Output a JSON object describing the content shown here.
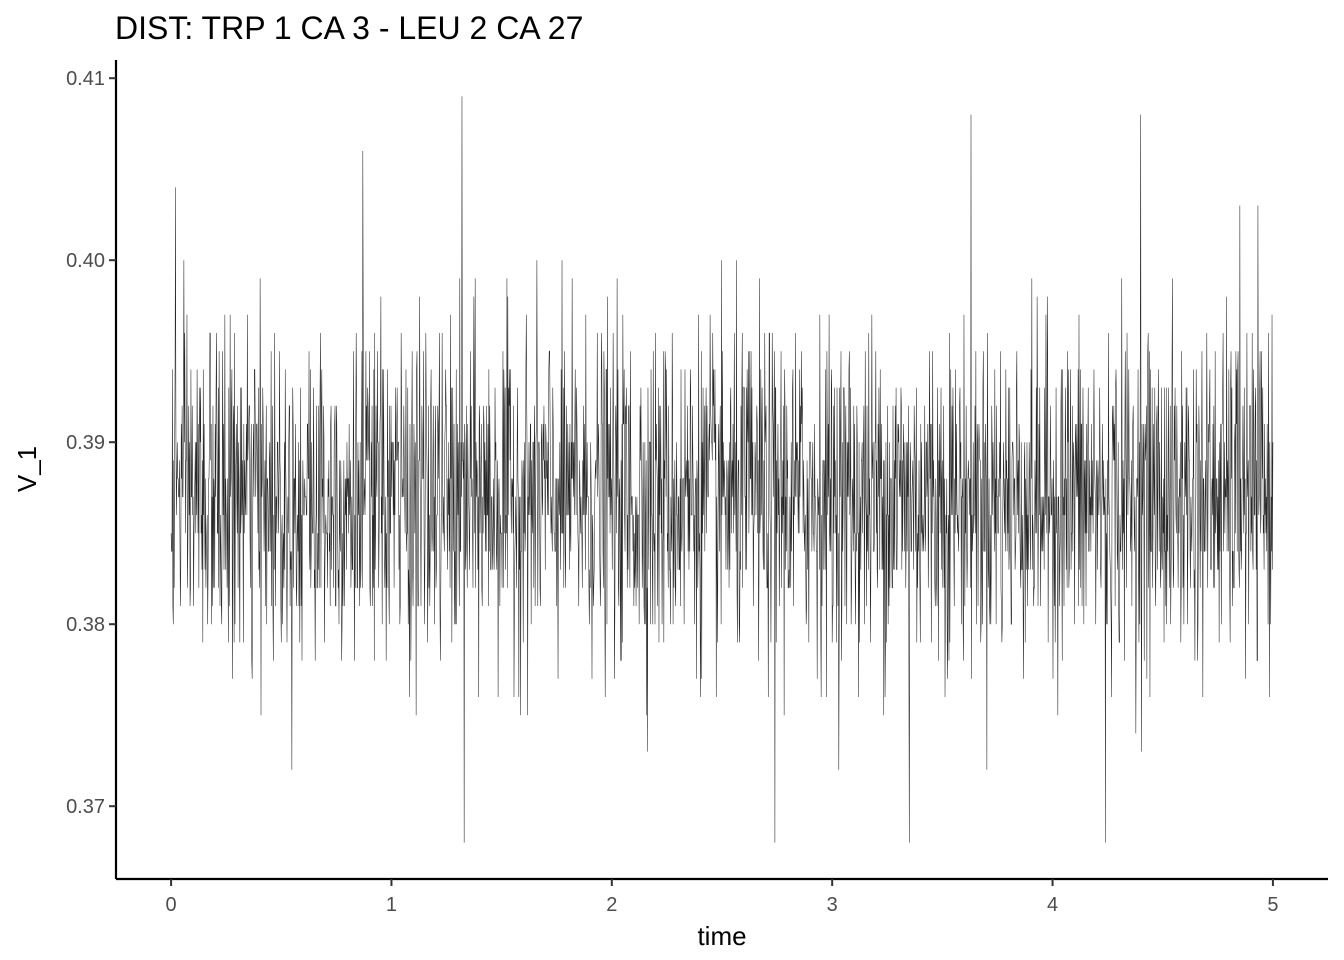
{
  "chart_data": {
    "type": "line",
    "title": "DIST: TRP 1 CA 3 - LEU 2 CA 27",
    "xlabel": "time",
    "ylabel": "V_1",
    "xlim": [
      -0.25,
      5.25
    ],
    "ylim": [
      0.366,
      0.411
    ],
    "x_ticks": [
      0,
      1,
      2,
      3,
      4,
      5
    ],
    "x_tick_labels": [
      "0",
      "1",
      "2",
      "3",
      "4",
      "5"
    ],
    "y_ticks": [
      0.37,
      0.38,
      0.39,
      0.4,
      0.41
    ],
    "y_tick_labels": [
      "0.37",
      "0.38",
      "0.39",
      "0.40",
      "0.41"
    ],
    "grid": false,
    "legend": "none",
    "series": [
      {
        "color": "#000000",
        "x_start": 0,
        "x_end": 5,
        "mean": 0.387,
        "noise_sd": 0.0045,
        "points": 2501,
        "y_min": 0.368,
        "y_max": 0.409,
        "notable_extremes": [
          {
            "x": 0.02,
            "y": 0.404
          },
          {
            "x": 0.87,
            "y": 0.406
          },
          {
            "x": 1.32,
            "y": 0.409
          },
          {
            "x": 1.33,
            "y": 0.368
          },
          {
            "x": 2.74,
            "y": 0.368
          },
          {
            "x": 3.35,
            "y": 0.368
          },
          {
            "x": 3.63,
            "y": 0.408
          },
          {
            "x": 4.24,
            "y": 0.368
          },
          {
            "x": 4.4,
            "y": 0.408
          },
          {
            "x": 4.85,
            "y": 0.403
          }
        ]
      }
    ]
  }
}
